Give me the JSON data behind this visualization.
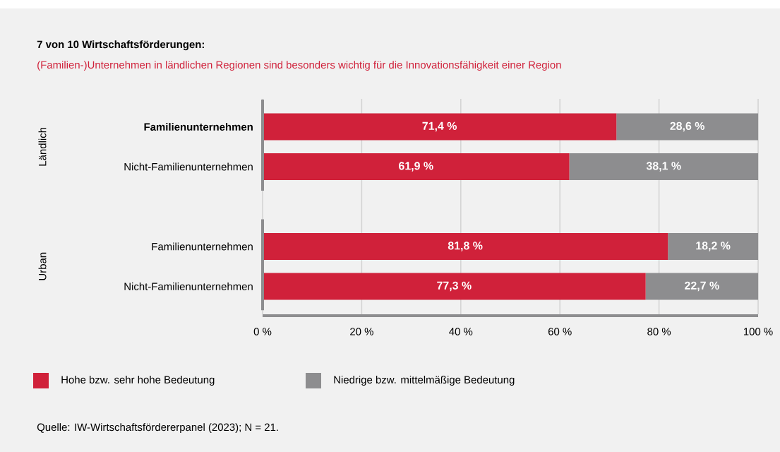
{
  "chart_data": {
    "type": "bar",
    "orientation": "horizontal",
    "stacked": true,
    "title": "7 von 10 Wirtschaftsförderungen:",
    "subtitle": "(Familien-)Unternehmen in ländlichen Regionen sind besonders wichtig für die Innovationsfähigkeit einer Region",
    "categories": [
      "**Familienunternehmen**",
      "Nicht-Familienunternehmen",
      null,
      "Familienunternehmen",
      "Nicht-Familienunternehmen"
    ],
    "series": [
      {
        "name": "Hohe bzw. sehr hohe Bedeutung",
        "color": "#d0213a",
        "values": [
          71.4,
          61.9,
          null,
          81.8,
          77.3
        ],
        "value_labels": [
          "71,4 %",
          "61,9 %",
          null,
          "81,8 %",
          "77,3 %"
        ]
      },
      {
        "name": "Niedrige bzw. mittelmäßige Bedeutung",
        "color": "#8d8d8f",
        "values": [
          28.6,
          38.1,
          null,
          18.2,
          22.7
        ],
        "value_labels": [
          "28,6 %",
          "38,1 %",
          null,
          "18,2 %",
          "22,7 %"
        ]
      }
    ],
    "xlim": [
      0,
      100
    ],
    "xticks": [
      {
        "value": 0,
        "label": "0 %"
      },
      {
        "value": 20,
        "label": "20 %"
      },
      {
        "value": 40,
        "label": "40 %"
      },
      {
        "value": 60,
        "label": "60 %"
      },
      {
        "value": 80,
        "label": "80 %"
      },
      {
        "value": 100,
        "label": "100 %"
      }
    ],
    "grid": "x",
    "legend": "bottom left",
    "annotations": [
      "Ländlich",
      "Urban",
      "Quelle: IW-Wirtschaftsfördererpanel (2023); N = 21."
    ]
  }
}
